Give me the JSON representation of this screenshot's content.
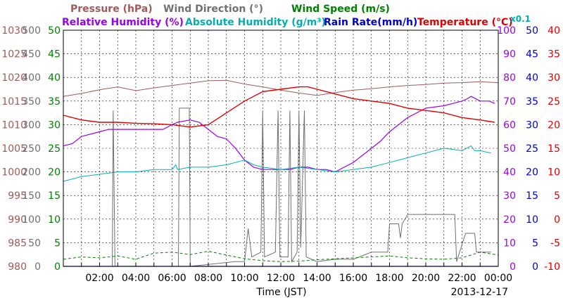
{
  "chart_data": {
    "type": "line",
    "date_label": "2013-12-17",
    "xlabel": "Time (JST)",
    "x_ticks": [
      "02:00",
      "04:00",
      "06:00",
      "08:00",
      "10:00",
      "12:00",
      "14:00",
      "16:00",
      "18:00",
      "20:00",
      "22:00",
      "00:00"
    ],
    "axes": {
      "pressure": {
        "label": "Pressure (hPa)",
        "color": "#a05a5a",
        "range": [
          980,
          1030
        ],
        "ticks": [
          "1030",
          "1025",
          "1020",
          "1015",
          "1010",
          "1005",
          "1000",
          "995",
          "990",
          "985",
          "980"
        ]
      },
      "wind_direction": {
        "label": "Wind Direction (°)",
        "color": "#707070",
        "range": [
          0,
          500
        ],
        "ticks": [
          "500",
          "450",
          "400",
          "350",
          "300",
          "250",
          "200",
          "150",
          "100",
          "50",
          "0"
        ]
      },
      "wind_speed": {
        "label": "Wind Speed (m/s)",
        "color": "#008000",
        "range": [
          0,
          50
        ],
        "ticks": [
          "50",
          "45",
          "40",
          "35",
          "30",
          "25",
          "20",
          "15",
          "10",
          "5",
          "0"
        ]
      },
      "relative_humidity": {
        "label": "Relative Humidity (%)",
        "color": "#9900ee",
        "range": [
          0,
          100
        ],
        "ticks": [
          "100",
          "90",
          "80",
          "70",
          "60",
          "50",
          "40",
          "30",
          "20",
          "10",
          "0"
        ]
      },
      "absolute_humidity": {
        "label": "Absolute Humidity (g/m³)",
        "color": "#00b0b0",
        "scale": "x0.1"
      },
      "rain_rate": {
        "label": "Rain Rate(mm/h)",
        "color": "#0000cc",
        "range": [
          0,
          50
        ],
        "ticks": [
          "50",
          "45",
          "40",
          "35",
          "30",
          "25",
          "20",
          "15",
          "10",
          "5",
          "0"
        ]
      },
      "temperature": {
        "label": "Temperature (°C)",
        "color": "#e00000",
        "range": [
          -10,
          40
        ],
        "ticks": [
          "40",
          "35",
          "30",
          "25",
          "20",
          "15",
          "10",
          "5",
          "0",
          "-5",
          "-10"
        ]
      }
    },
    "series": [
      {
        "name": "Pressure (hPa)",
        "axis": "pressure",
        "x": [
          0,
          1,
          2,
          3,
          4,
          5,
          6,
          7,
          8,
          9,
          10,
          11,
          12,
          13,
          14,
          15,
          16,
          17,
          18,
          19,
          20,
          21,
          22,
          23,
          24
        ],
        "values": [
          1016.0,
          1016.6,
          1017.4,
          1018.0,
          1017.2,
          1017.8,
          1018.3,
          1018.8,
          1019.3,
          1019.4,
          1018.6,
          1018.0,
          1017.3,
          1016.7,
          1016.2,
          1016.8,
          1017.3,
          1017.6,
          1018.0,
          1018.3,
          1018.5,
          1018.8,
          1018.9,
          1019.1,
          1018.9
        ]
      },
      {
        "name": "Wind Direction (°)",
        "axis": "wind_direction",
        "points": [
          [
            0,
            0
          ],
          [
            2.7,
            0
          ],
          [
            2.75,
            330
          ],
          [
            2.85,
            0
          ],
          [
            6.35,
            0
          ],
          [
            6.4,
            335
          ],
          [
            6.95,
            335
          ],
          [
            7.0,
            0
          ],
          [
            9.5,
            10
          ],
          [
            10.0,
            10
          ],
          [
            10.2,
            80
          ],
          [
            10.4,
            20
          ],
          [
            10.9,
            30
          ],
          [
            11.0,
            330
          ],
          [
            11.1,
            20
          ],
          [
            11.7,
            30
          ],
          [
            11.85,
            330
          ],
          [
            11.95,
            20
          ],
          [
            12.4,
            20
          ],
          [
            12.5,
            330
          ],
          [
            12.6,
            10
          ],
          [
            12.9,
            30
          ],
          [
            13.0,
            330
          ],
          [
            13.1,
            40
          ],
          [
            13.3,
            330
          ],
          [
            13.4,
            20
          ],
          [
            14.0,
            10
          ],
          [
            15.0,
            15
          ],
          [
            16.0,
            15
          ],
          [
            17.0,
            30
          ],
          [
            17.9,
            30
          ],
          [
            18.0,
            90
          ],
          [
            18.5,
            90
          ],
          [
            18.6,
            60
          ],
          [
            18.7,
            90
          ],
          [
            19.0,
            110
          ],
          [
            21.6,
            110
          ],
          [
            21.7,
            10
          ],
          [
            22.2,
            70
          ],
          [
            22.7,
            70
          ],
          [
            22.8,
            30
          ],
          [
            23.6,
            30
          ]
        ]
      },
      {
        "name": "Wind Speed (m/s)",
        "axis": "wind_speed",
        "x": [
          0,
          1,
          2,
          3,
          4,
          5,
          6,
          7,
          8,
          9,
          10,
          11,
          12,
          13,
          14,
          15,
          16,
          17,
          18,
          19,
          20,
          21,
          22,
          23,
          24
        ],
        "values": [
          1.5,
          2,
          1.8,
          2.2,
          1.5,
          2.8,
          3,
          2.5,
          3.2,
          2.4,
          1.6,
          1.2,
          1.0,
          1.1,
          1.4,
          1.6,
          1.8,
          2.0,
          2.2,
          1.8,
          1.6,
          1.5,
          1.8,
          3.0,
          2.4
        ]
      },
      {
        "name": "Relative Humidity (%)",
        "axis": "relative_humidity",
        "points": [
          [
            0,
            51
          ],
          [
            0.5,
            52
          ],
          [
            1,
            55
          ],
          [
            2,
            57
          ],
          [
            2.5,
            58
          ],
          [
            4,
            58
          ],
          [
            5.5,
            58
          ],
          [
            6,
            60
          ],
          [
            6.3,
            61
          ],
          [
            7,
            62
          ],
          [
            7.5,
            61
          ],
          [
            8,
            58
          ],
          [
            8.5,
            55
          ],
          [
            9,
            54
          ],
          [
            9.5,
            50
          ],
          [
            10,
            45
          ],
          [
            10.5,
            42
          ],
          [
            11,
            41
          ],
          [
            11.5,
            41
          ],
          [
            12,
            41
          ],
          [
            12.5,
            41
          ],
          [
            13,
            42
          ],
          [
            13.5,
            42
          ],
          [
            14,
            41
          ],
          [
            14.5,
            41
          ],
          [
            15,
            40
          ],
          [
            15.5,
            42
          ],
          [
            16,
            44
          ],
          [
            16.5,
            47
          ],
          [
            17,
            50
          ],
          [
            17.5,
            53
          ],
          [
            18,
            57
          ],
          [
            18.5,
            60
          ],
          [
            19,
            63
          ],
          [
            19.5,
            65
          ],
          [
            20,
            67
          ],
          [
            21,
            68
          ],
          [
            21.5,
            69
          ],
          [
            22,
            70
          ],
          [
            22.3,
            71
          ],
          [
            22.5,
            72
          ],
          [
            23,
            70
          ],
          [
            23.5,
            70
          ],
          [
            23.8,
            69
          ]
        ]
      },
      {
        "name": "Absolute Humidity (g/m³)",
        "axis": "relative_humidity",
        "points": [
          [
            0,
            36
          ],
          [
            1,
            38
          ],
          [
            2,
            39
          ],
          [
            3,
            40
          ],
          [
            4,
            40
          ],
          [
            5,
            41
          ],
          [
            6,
            41
          ],
          [
            6.2,
            43
          ],
          [
            6.3,
            41
          ],
          [
            7,
            42
          ],
          [
            8,
            42
          ],
          [
            9,
            43
          ],
          [
            9.5,
            44
          ],
          [
            10,
            45
          ],
          [
            10.5,
            43
          ],
          [
            11,
            42
          ],
          [
            12,
            41
          ],
          [
            13,
            42
          ],
          [
            14,
            41
          ],
          [
            15,
            40
          ],
          [
            16,
            41
          ],
          [
            17,
            42
          ],
          [
            18,
            44
          ],
          [
            19,
            46
          ],
          [
            20,
            48
          ],
          [
            21,
            50
          ],
          [
            22,
            49
          ],
          [
            22.5,
            51
          ],
          [
            22.7,
            49
          ],
          [
            23,
            49
          ],
          [
            23.6,
            48
          ]
        ]
      },
      {
        "name": "Rain Rate(mm/h)",
        "axis": "rain_rate",
        "x": [
          0,
          24
        ],
        "values": [
          0,
          0
        ]
      },
      {
        "name": "Temperature (°C)",
        "axis": "temperature",
        "points": [
          [
            0,
            22
          ],
          [
            1,
            21
          ],
          [
            2,
            20.5
          ],
          [
            3,
            20.5
          ],
          [
            4,
            20.3
          ],
          [
            5,
            20.2
          ],
          [
            6,
            20
          ],
          [
            7,
            19.5
          ],
          [
            8,
            20
          ],
          [
            9,
            22.5
          ],
          [
            10,
            25
          ],
          [
            11,
            27
          ],
          [
            12,
            27.5
          ],
          [
            13,
            28
          ],
          [
            13.5,
            28
          ],
          [
            14,
            27.5
          ],
          [
            15,
            26.5
          ],
          [
            16,
            25.5
          ],
          [
            17,
            25
          ],
          [
            18,
            24.5
          ],
          [
            19,
            23.5
          ],
          [
            20,
            23
          ],
          [
            21,
            22.5
          ],
          [
            22,
            21.5
          ],
          [
            23,
            21
          ],
          [
            23.8,
            20.5
          ]
        ]
      }
    ]
  }
}
